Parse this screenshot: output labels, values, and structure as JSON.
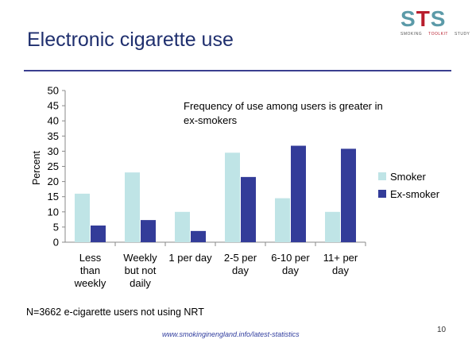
{
  "slide": {
    "title": "Electronic cigarette use",
    "footnote": "N=3662 e-cigarette users not using NRT",
    "source": "www.smokinginengland.info/latest-statistics",
    "page_number": "10"
  },
  "logo": {
    "letters": [
      "S",
      "T",
      "S"
    ],
    "sub": [
      "SMOKING",
      "TOOLKIT",
      "STUDY"
    ]
  },
  "colors": {
    "smoker": "#bfe4e6",
    "ex_smoker": "#333c99",
    "title": "#1f2f6e"
  },
  "chart_data": {
    "type": "bar",
    "categories": [
      [
        "Less",
        "than",
        "weekly"
      ],
      [
        "Weekly",
        "but not",
        "daily"
      ],
      [
        "1 per day"
      ],
      [
        "2-5 per",
        "day"
      ],
      [
        "6-10 per",
        "day"
      ],
      [
        "11+ per",
        "day"
      ]
    ],
    "series": [
      {
        "name": "Smoker",
        "values": [
          16,
          23,
          10,
          29.5,
          14.5,
          10
        ]
      },
      {
        "name": "Ex-smoker",
        "values": [
          5.5,
          7.3,
          3.7,
          21.5,
          31.8,
          30.8
        ]
      }
    ],
    "ylabel": "Percent",
    "ylim": [
      0,
      50
    ],
    "yticks": [
      0,
      5,
      10,
      15,
      20,
      25,
      30,
      35,
      40,
      45,
      50
    ],
    "annotation": [
      "Frequency of use among users is greater in",
      "ex-smokers"
    ],
    "grid": false,
    "legend": "right"
  }
}
